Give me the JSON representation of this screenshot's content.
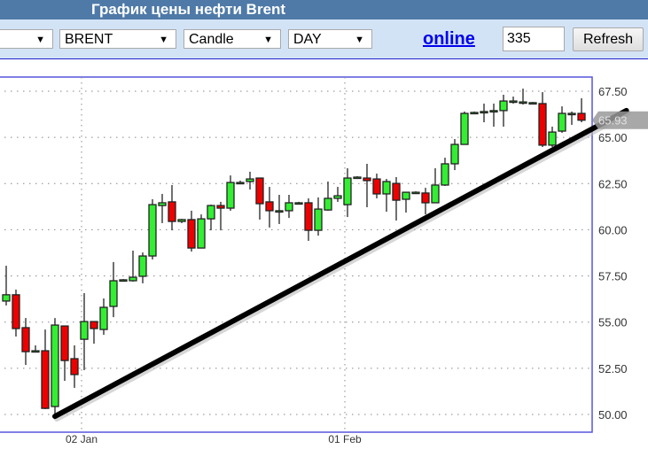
{
  "header": {
    "title": "График цены нефти Brent"
  },
  "toolbar": {
    "select_first": "",
    "select_symbol": "BRENT",
    "select_type": "Candle",
    "select_period": "DAY",
    "online_link": "online",
    "count_value": "335",
    "refresh_label": "Refresh",
    "arrow": "▼"
  },
  "colors": {
    "up": "#33ee33",
    "down": "#ee0000",
    "frame": "#5555dd",
    "trendline": "#000000",
    "price_marker": "#999999"
  },
  "chart_data": {
    "type": "candlestick",
    "title": "",
    "ylim": [
      49.5,
      68.5
    ],
    "y_ticks": [
      "50.00",
      "52.50",
      "55.00",
      "57.50",
      "60.00",
      "62.50",
      "65.00",
      "67.50"
    ],
    "x_labels": [
      {
        "label": "02 Jan",
        "index": 8
      },
      {
        "label": "01 Feb",
        "index": 35
      }
    ],
    "grid": true,
    "current_price": "65.93",
    "candles_ohlc": [
      [
        56.14,
        58.05,
        55.9,
        56.48
      ],
      [
        56.48,
        56.76,
        54.22,
        54.65
      ],
      [
        54.7,
        55.22,
        52.68,
        53.4
      ],
      [
        53.45,
        53.74,
        53.4,
        53.45
      ],
      [
        53.45,
        54.6,
        50.29,
        50.33
      ],
      [
        50.43,
        55.22,
        49.95,
        54.84
      ],
      [
        54.79,
        54.79,
        51.82,
        52.92
      ],
      [
        53.02,
        53.74,
        51.44,
        52.16
      ],
      [
        54.07,
        56.57,
        52.4,
        55.03
      ],
      [
        55.03,
        55.03,
        53.83,
        54.65
      ],
      [
        54.6,
        56.28,
        54.31,
        55.8
      ],
      [
        55.85,
        58.25,
        55.27,
        57.24
      ],
      [
        57.24,
        57.33,
        57.19,
        57.29
      ],
      [
        57.24,
        58.87,
        57.19,
        57.43
      ],
      [
        57.48,
        58.77,
        57.1,
        58.58
      ],
      [
        58.58,
        61.65,
        58.39,
        61.36
      ],
      [
        61.31,
        61.94,
        60.36,
        61.46
      ],
      [
        61.51,
        62.42,
        59.97,
        60.45
      ],
      [
        60.45,
        60.59,
        60.36,
        60.55
      ],
      [
        60.55,
        61.03,
        58.82,
        59.01
      ],
      [
        59.01,
        60.83,
        59.01,
        60.59
      ],
      [
        60.59,
        61.36,
        59.97,
        61.31
      ],
      [
        61.31,
        61.51,
        59.97,
        61.17
      ],
      [
        61.17,
        62.94,
        61.03,
        62.56
      ],
      [
        62.56,
        62.66,
        62.47,
        62.56
      ],
      [
        62.61,
        63.14,
        62.18,
        62.75
      ],
      [
        62.8,
        62.8,
        60.55,
        61.41
      ],
      [
        61.51,
        62.32,
        60.12,
        61.03
      ],
      [
        61.03,
        61.89,
        60.31,
        61.03
      ],
      [
        61.03,
        61.89,
        60.64,
        61.46
      ],
      [
        61.46,
        61.51,
        61.41,
        61.46
      ],
      [
        61.46,
        61.7,
        59.4,
        59.97
      ],
      [
        59.97,
        61.75,
        59.68,
        61.12
      ],
      [
        61.07,
        62.61,
        61.03,
        61.7
      ],
      [
        61.7,
        62.32,
        61.51,
        61.84
      ],
      [
        61.36,
        63.33,
        60.69,
        62.8
      ],
      [
        62.85,
        62.9,
        62.8,
        62.85
      ],
      [
        62.8,
        63.57,
        61.22,
        62.66
      ],
      [
        62.75,
        63.04,
        61.7,
        61.94
      ],
      [
        61.94,
        62.75,
        60.98,
        62.61
      ],
      [
        62.51,
        62.85,
        60.5,
        61.6
      ],
      [
        61.65,
        62.03,
        60.93,
        62.03
      ],
      [
        62.03,
        62.08,
        61.99,
        62.03
      ],
      [
        61.99,
        62.27,
        60.83,
        61.46
      ],
      [
        61.46,
        63.33,
        61.46,
        62.42
      ],
      [
        62.42,
        63.9,
        62.37,
        63.57
      ],
      [
        63.57,
        64.91,
        63.23,
        64.62
      ],
      [
        64.62,
        66.4,
        64.62,
        66.3
      ],
      [
        66.35,
        66.4,
        66.3,
        66.35
      ],
      [
        66.4,
        66.83,
        65.82,
        66.4
      ],
      [
        66.45,
        66.83,
        65.58,
        66.45
      ],
      [
        66.45,
        67.31,
        65.58,
        66.97
      ],
      [
        66.97,
        67.21,
        66.83,
        66.97
      ],
      [
        66.92,
        67.64,
        66.78,
        66.92
      ],
      [
        66.88,
        66.92,
        66.83,
        66.88
      ],
      [
        66.83,
        67.45,
        64.48,
        64.58
      ],
      [
        64.58,
        65.58,
        64.48,
        65.29
      ],
      [
        65.34,
        66.68,
        65.25,
        66.3
      ],
      [
        66.3,
        66.4,
        65.68,
        66.3
      ],
      [
        66.3,
        67.12,
        65.82,
        65.93
      ]
    ],
    "trendline": {
      "start": {
        "index": 5,
        "price": 49.9
      },
      "end": {
        "index": 63.6,
        "price": 66.45
      }
    }
  }
}
